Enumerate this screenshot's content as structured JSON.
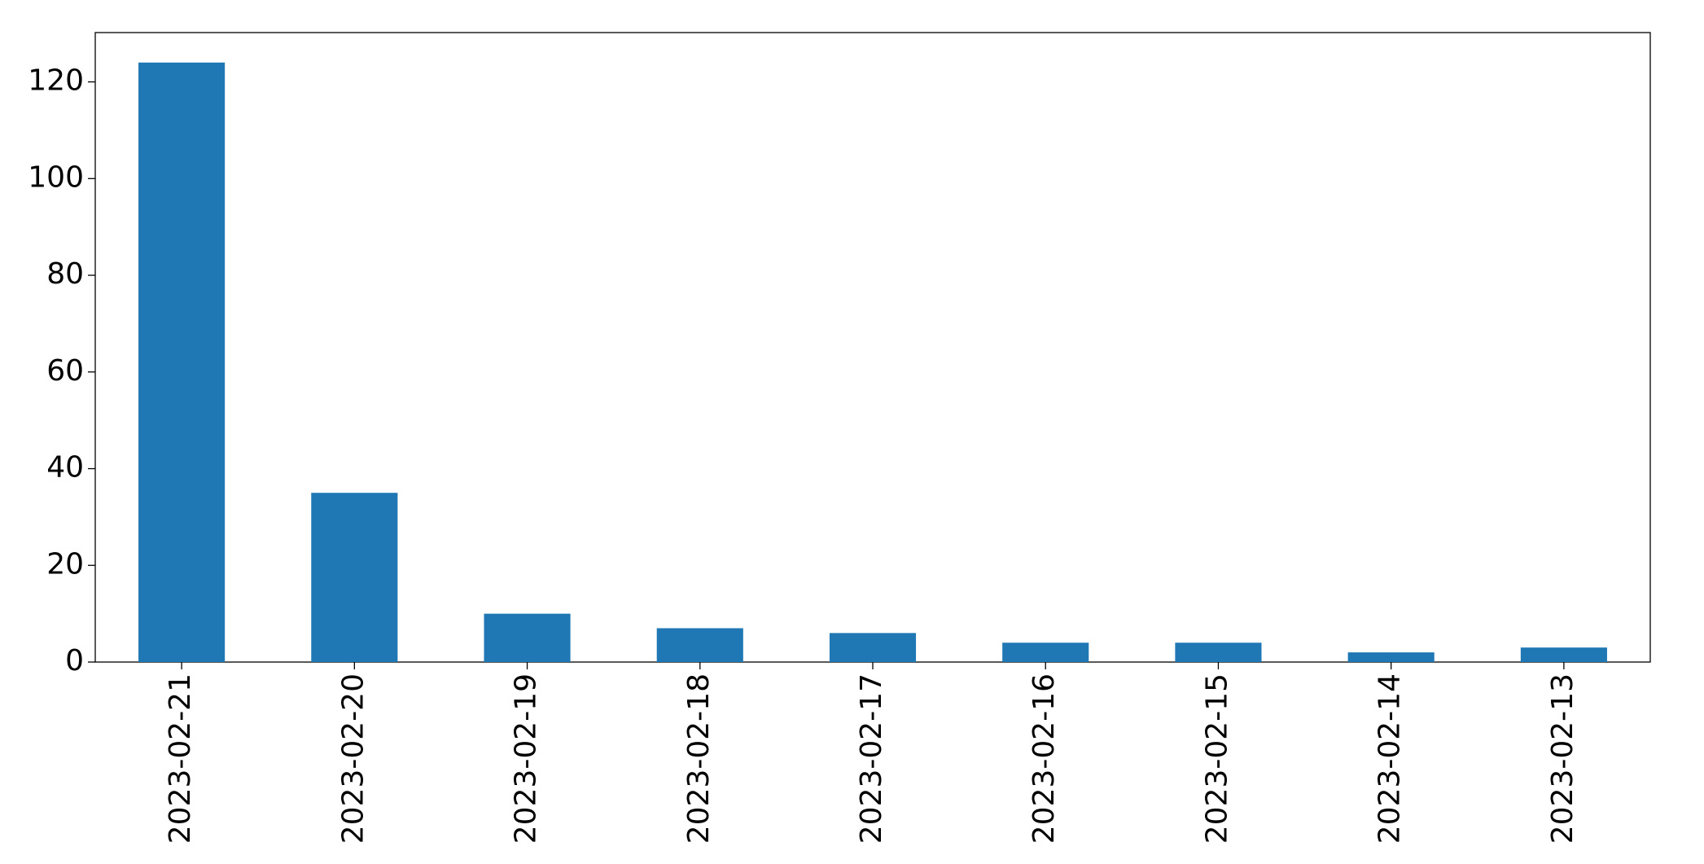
{
  "chart_data": {
    "type": "bar",
    "categories": [
      "2023-02-21",
      "2023-02-20",
      "2023-02-19",
      "2023-02-18",
      "2023-02-17",
      "2023-02-16",
      "2023-02-15",
      "2023-02-14",
      "2023-02-13"
    ],
    "values": [
      124,
      35,
      10,
      7,
      6,
      4,
      4,
      2,
      3
    ],
    "color": "#1f77b4",
    "ylim": [
      0,
      130.2
    ],
    "yticks": [
      0,
      20,
      40,
      60,
      80,
      100,
      120
    ],
    "grid": false
  }
}
